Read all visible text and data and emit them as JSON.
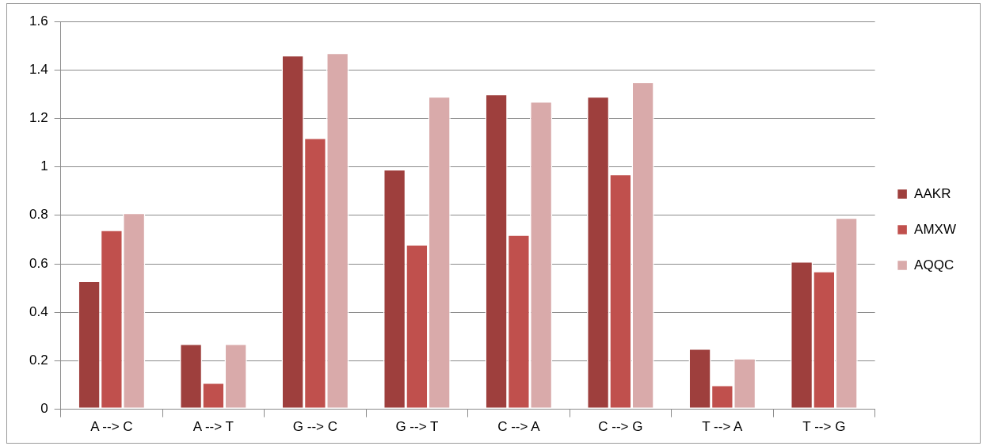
{
  "chart_data": {
    "type": "bar",
    "categories": [
      "A --> C",
      "A --> T",
      "G --> C",
      "G --> T",
      "C --> A",
      "C --> G",
      "T --> A",
      "T --> G"
    ],
    "series": [
      {
        "name": "AAKR",
        "color": "#9e3f3d",
        "values": [
          0.53,
          0.27,
          1.46,
          0.99,
          1.3,
          1.29,
          0.25,
          0.61
        ]
      },
      {
        "name": "AMXW",
        "color": "#c0504d",
        "values": [
          0.74,
          0.11,
          1.12,
          0.68,
          0.72,
          0.97,
          0.1,
          0.57
        ]
      },
      {
        "name": "AQQC",
        "color": "#d9aaaa",
        "values": [
          0.81,
          0.27,
          1.47,
          1.29,
          1.27,
          1.35,
          0.21,
          0.79
        ]
      }
    ],
    "ylim": [
      0,
      1.6
    ],
    "yticks": [
      0,
      0.2,
      0.4,
      0.6,
      0.8,
      1,
      1.2,
      1.4,
      1.6
    ],
    "grid": "y",
    "legend": "right"
  }
}
